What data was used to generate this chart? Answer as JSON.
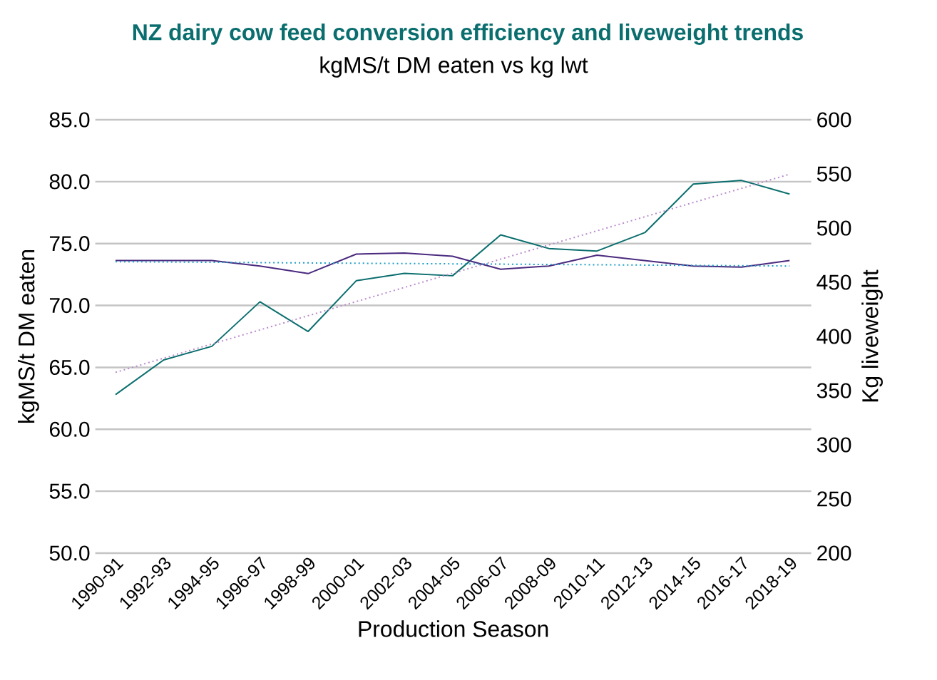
{
  "chart_data": {
    "type": "line",
    "title": "NZ dairy cow feed conversion efficiency and liveweight trends",
    "subtitle": "kgMS/t DM eaten vs kg lwt",
    "xlabel": "Production Season",
    "ylabel": "kgMS/t DM eaten",
    "y2label": "Kg liveweight",
    "categories": [
      "1990-91",
      "1992-93",
      "1994-95",
      "1996-97",
      "1998-99",
      "2000-01",
      "2002-03",
      "2004-05",
      "2006-07",
      "2008-09",
      "2010-11",
      "2012-13",
      "2014-15",
      "2016-17",
      "2018-19"
    ],
    "series": [
      {
        "color": "#0b6e6e",
        "values": [
          62.8,
          65.6,
          66.7,
          70.3,
          67.9,
          72.0,
          72.6,
          72.4,
          75.7,
          74.6,
          74.4,
          75.9,
          79.8,
          80.1,
          79.0
        ]
      },
      {
        "color": "#4b2a7f",
        "axis": "y2",
        "values": [
          470,
          470,
          470,
          465,
          458,
          476,
          477,
          474,
          462,
          465,
          475,
          470,
          465,
          464,
          470
        ]
      },
      {
        "color": "#b98acb",
        "line_style": "dotted",
        "values": [
          64.6,
          null,
          null,
          null,
          null,
          null,
          null,
          null,
          null,
          null,
          null,
          null,
          null,
          null,
          80.6
        ]
      },
      {
        "color": "#1a9ec9",
        "axis": "y2",
        "line_style": "dotted",
        "values": [
          469,
          null,
          null,
          null,
          null,
          null,
          null,
          null,
          null,
          null,
          null,
          null,
          null,
          null,
          465
        ]
      }
    ],
    "ylim": [
      50,
      85
    ],
    "yticks": [
      {
        "value": 50,
        "label": "50.0"
      },
      {
        "value": 55,
        "label": "55.0"
      },
      {
        "value": 60,
        "label": "60.0"
      },
      {
        "value": 65,
        "label": "65.0"
      },
      {
        "value": 70,
        "label": "70.0"
      },
      {
        "value": 75,
        "label": "75.0"
      },
      {
        "value": 80,
        "label": "80.0"
      },
      {
        "value": 85,
        "label": "85.0"
      }
    ],
    "y2lim": [
      200,
      600
    ],
    "y2ticks": [
      200,
      250,
      300,
      350,
      400,
      450,
      500,
      550,
      600
    ],
    "grid": "y"
  }
}
